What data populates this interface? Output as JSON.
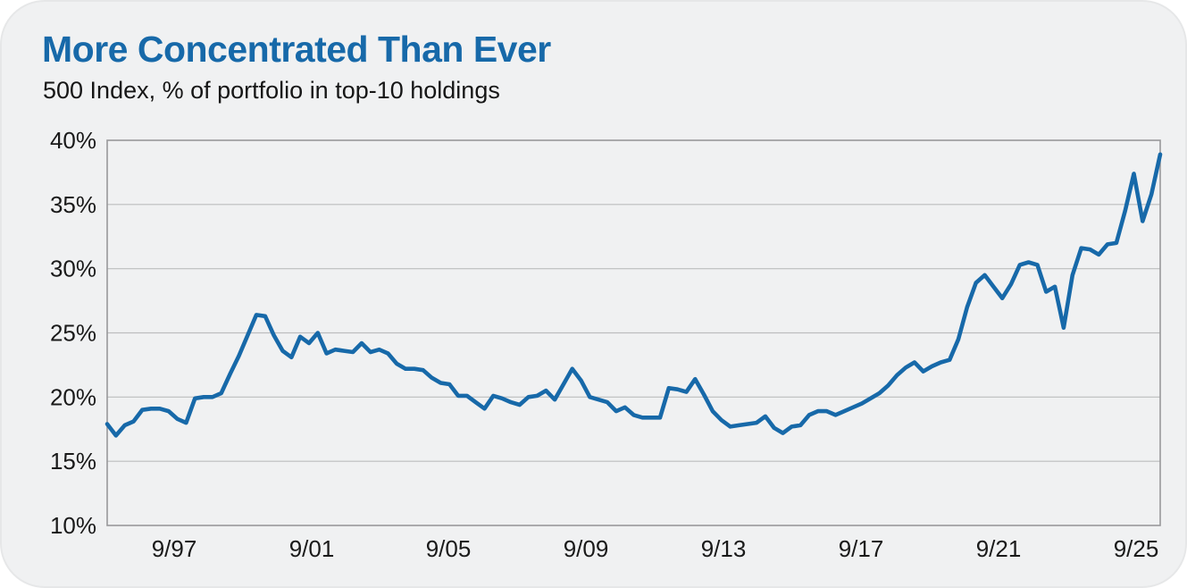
{
  "header": {
    "title": "More Concentrated Than Ever",
    "subtitle": "500 Index, % of portfolio in top-10 holdings"
  },
  "chart_data": {
    "type": "line",
    "title": "More Concentrated Than Ever",
    "subtitle": "500 Index, % of portfolio in top-10 holdings",
    "series_name": "% of portfolio in top-10 holdings",
    "unit": "%",
    "frequency": "quarterly",
    "grid": "horizontal",
    "legend": "none",
    "ylim": [
      10,
      40
    ],
    "y_tick_labels": [
      "40%",
      "35%",
      "30%",
      "25%",
      "20%",
      "15%",
      "10%"
    ],
    "y_tick_values": [
      40,
      35,
      30,
      25,
      20,
      15,
      10
    ],
    "x_tick_labels": [
      "9/97",
      "9/01",
      "9/05",
      "9/09",
      "9/13",
      "9/17",
      "9/21",
      "9/25"
    ],
    "line_color": "#1769a9",
    "background_color": "#f0f1f2",
    "gridline_color": "#bcbdbe",
    "axis_border_color": "#98989a",
    "x": [
      "9/95",
      "12/95",
      "3/96",
      "6/96",
      "9/96",
      "12/96",
      "3/97",
      "6/97",
      "9/97",
      "12/97",
      "3/98",
      "6/98",
      "9/98",
      "12/98",
      "3/99",
      "6/99",
      "9/99",
      "12/99",
      "3/00",
      "6/00",
      "9/00",
      "12/00",
      "3/01",
      "6/01",
      "9/01",
      "12/01",
      "3/02",
      "6/02",
      "9/02",
      "12/02",
      "3/03",
      "6/03",
      "9/03",
      "12/03",
      "3/04",
      "6/04",
      "9/04",
      "12/04",
      "3/05",
      "6/05",
      "9/05",
      "12/05",
      "3/06",
      "6/06",
      "9/06",
      "12/06",
      "3/07",
      "6/07",
      "9/07",
      "12/07",
      "3/08",
      "6/08",
      "9/08",
      "12/08",
      "3/09",
      "6/09",
      "9/09",
      "12/09",
      "3/10",
      "6/10",
      "9/10",
      "12/10",
      "3/11",
      "6/11",
      "9/11",
      "12/11",
      "3/12",
      "6/12",
      "9/12",
      "12/12",
      "3/13",
      "6/13",
      "9/13",
      "12/13",
      "3/14",
      "6/14",
      "9/14",
      "12/14",
      "3/15",
      "6/15",
      "9/15",
      "12/15",
      "3/16",
      "6/16",
      "9/16",
      "12/16",
      "3/17",
      "6/17",
      "9/17",
      "12/17",
      "3/18",
      "6/18",
      "9/18",
      "12/18",
      "3/19",
      "6/19",
      "9/19",
      "12/19",
      "3/20",
      "6/20",
      "9/20",
      "12/20",
      "3/21",
      "6/21",
      "9/21",
      "12/21",
      "3/22",
      "6/22",
      "9/22",
      "12/22",
      "3/23",
      "6/23",
      "9/23",
      "12/23",
      "3/24",
      "6/24",
      "9/24",
      "12/24",
      "3/25",
      "6/25",
      "9/25"
    ],
    "values": [
      17.9,
      17.0,
      17.8,
      18.1,
      19.0,
      19.1,
      19.1,
      18.9,
      18.3,
      18.0,
      19.9,
      20.0,
      20.0,
      20.3,
      21.8,
      23.2,
      24.8,
      26.4,
      26.3,
      24.8,
      23.6,
      23.1,
      24.7,
      24.2,
      25.0,
      23.4,
      23.7,
      23.6,
      23.5,
      24.2,
      23.5,
      23.7,
      23.4,
      22.6,
      22.2,
      22.2,
      22.1,
      21.5,
      21.1,
      21.0,
      20.1,
      20.1,
      19.6,
      19.1,
      20.1,
      19.9,
      19.6,
      19.4,
      20.0,
      20.1,
      20.5,
      19.8,
      21.0,
      22.2,
      21.3,
      20.0,
      19.8,
      19.6,
      18.9,
      19.2,
      18.6,
      18.4,
      18.4,
      18.4,
      20.7,
      20.6,
      20.4,
      21.4,
      20.2,
      18.9,
      18.2,
      17.7,
      17.8,
      17.9,
      18.0,
      18.5,
      17.6,
      17.2,
      17.7,
      17.8,
      18.6,
      18.9,
      18.9,
      18.6,
      18.9,
      19.2,
      19.5,
      19.9,
      20.3,
      20.9,
      21.7,
      22.3,
      22.7,
      22.0,
      22.4,
      22.7,
      22.9,
      24.5,
      27.0,
      28.9,
      29.5,
      28.6,
      27.7,
      28.8,
      30.3,
      30.5,
      30.3,
      28.2,
      28.6,
      25.4,
      29.5,
      31.6,
      31.5,
      31.1,
      31.9,
      32.0,
      34.5,
      37.4,
      33.7,
      35.8,
      38.9
    ]
  }
}
